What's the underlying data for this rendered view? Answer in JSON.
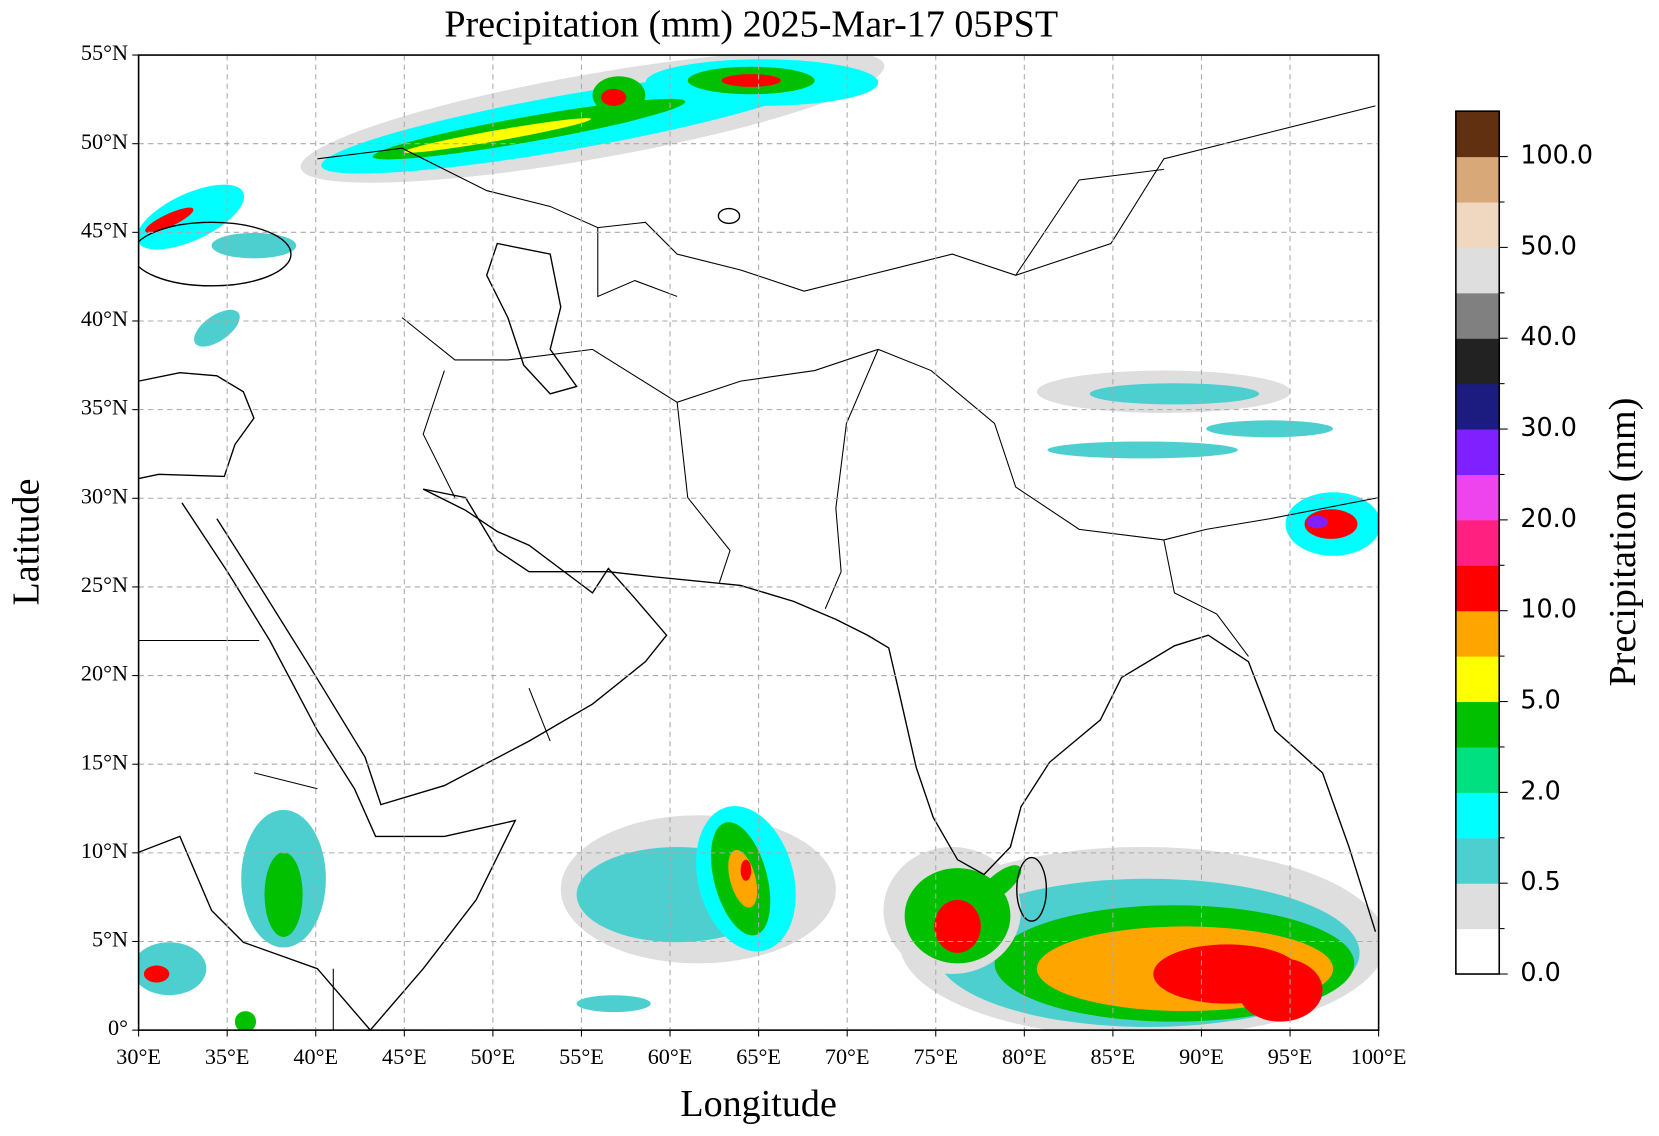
{
  "map": {
    "title": "Precipitation (mm)  2025-Mar-17 05PST",
    "xlabel": "Longitude",
    "ylabel": "Latitude",
    "xlim": [
      30,
      100
    ],
    "ylim": [
      0,
      55
    ],
    "grid": true,
    "xticks": [
      {
        "value": 30,
        "label": "30°E"
      },
      {
        "value": 35,
        "label": "35°E"
      },
      {
        "value": 40,
        "label": "40°E"
      },
      {
        "value": 45,
        "label": "45°E"
      },
      {
        "value": 50,
        "label": "50°E"
      },
      {
        "value": 55,
        "label": "55°E"
      },
      {
        "value": 60,
        "label": "60°E"
      },
      {
        "value": 65,
        "label": "65°E"
      },
      {
        "value": 70,
        "label": "70°E"
      },
      {
        "value": 75,
        "label": "75°E"
      },
      {
        "value": 80,
        "label": "80°E"
      },
      {
        "value": 85,
        "label": "85°E"
      },
      {
        "value": 90,
        "label": "90°E"
      },
      {
        "value": 95,
        "label": "95°E"
      },
      {
        "value": 100,
        "label": "100°E"
      }
    ],
    "yticks": [
      {
        "value": 0,
        "label": "0°"
      },
      {
        "value": 5,
        "label": "5°N"
      },
      {
        "value": 10,
        "label": "10°N"
      },
      {
        "value": 15,
        "label": "15°N"
      },
      {
        "value": 20,
        "label": "20°N"
      },
      {
        "value": 25,
        "label": "25°N"
      },
      {
        "value": 30,
        "label": "30°N"
      },
      {
        "value": 35,
        "label": "35°N"
      },
      {
        "value": 40,
        "label": "40°N"
      },
      {
        "value": 45,
        "label": "45°N"
      },
      {
        "value": 50,
        "label": "50°N"
      },
      {
        "value": 55,
        "label": "55°N"
      }
    ],
    "colorbar": {
      "label": "Precipitation (mm)",
      "colors": [
        "#ffffff",
        "#dedede",
        "#4ecfcf",
        "#00ffff",
        "#00e080",
        "#00c000",
        "#ffff00",
        "#ffa500",
        "#ff0000",
        "#ff2080",
        "#ee44ee",
        "#8020ff",
        "#1c1c80",
        "#222222",
        "#808080",
        "#dedede",
        "#f0d8c0",
        "#d8a878",
        "#603010"
      ],
      "ticks": [
        {
          "value": 0,
          "label": "0.0"
        },
        {
          "value": 0.5,
          "label": "0.5"
        },
        {
          "value": 2,
          "label": "2.0"
        },
        {
          "value": 5,
          "label": "5.0"
        },
        {
          "value": 10,
          "label": "10.0"
        },
        {
          "value": 20,
          "label": "20.0"
        },
        {
          "value": 30,
          "label": "30.0"
        },
        {
          "value": 40,
          "label": "40.0"
        },
        {
          "value": 50,
          "label": "50.0"
        },
        {
          "value": 100,
          "label": "100.0"
        }
      ]
    }
  }
}
